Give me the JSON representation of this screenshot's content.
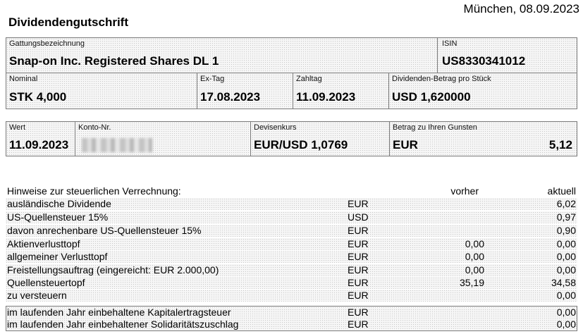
{
  "header": {
    "place_date": "München, 08.09.2023",
    "title": "Dividendengutschrift"
  },
  "security": {
    "name_label": "Gattungsbezeichnung",
    "name_value": "Snap-on Inc. Registered Shares DL 1",
    "isin_label": "ISIN",
    "isin_value": "US8330341012",
    "nominal_label": "Nominal",
    "nominal_value": "STK 4,000",
    "ex_tag_label": "Ex-Tag",
    "ex_tag_value": "17.08.2023",
    "zahltag_label": "Zahltag",
    "zahltag_value": "11.09.2023",
    "dividend_label": "Dividenden-Betrag pro Stück",
    "dividend_value": "USD 1,620000"
  },
  "payment": {
    "wert_label": "Wert",
    "wert_value": "11.09.2023",
    "konto_label": "Konto-Nr.",
    "devisenkurs_label": "Devisenkurs",
    "devisenkurs_value": "EUR/USD 1,0769",
    "betrag_label": "Betrag zu Ihren Gunsten",
    "betrag_currency": "EUR",
    "betrag_value": "5,12"
  },
  "tax": {
    "heading": "Hinweise zur steuerlichen Verrechnung:",
    "col_prev": "vorher",
    "col_current": "aktuell",
    "rows": [
      {
        "label": "ausländische Dividende",
        "currency": "EUR",
        "prev": "",
        "current": "6,02"
      },
      {
        "label": "US-Quellensteuer 15%",
        "currency": "USD",
        "prev": "",
        "current": "0,97"
      },
      {
        "label": "davon anrechenbare US-Quellensteuer 15%",
        "currency": "EUR",
        "prev": "",
        "current": "0,90"
      },
      {
        "label": "Aktienverlusttopf",
        "currency": "EUR",
        "prev": "0,00",
        "current": "0,00"
      },
      {
        "label": "allgemeiner Verlusttopf",
        "currency": "EUR",
        "prev": "0,00",
        "current": "0,00"
      },
      {
        "label": "Freistellungsauftrag (eingereicht: EUR 2.000,00)",
        "currency": "EUR",
        "prev": "0,00",
        "current": "0,00"
      },
      {
        "label": "Quellensteuertopf",
        "currency": "EUR",
        "prev": "35,19",
        "current": "34,58"
      },
      {
        "label": "zu versteuern",
        "currency": "EUR",
        "prev": "",
        "current": "0,00"
      },
      {
        "label": "im laufenden Jahr einbehaltene Kapitalertragsteuer",
        "currency": "EUR",
        "prev": "",
        "current": "0,00"
      },
      {
        "label": "im laufenden Jahr einbehaltener Solidaritätszuschlag",
        "currency": "EUR",
        "prev": "",
        "current": "0,00"
      }
    ]
  }
}
